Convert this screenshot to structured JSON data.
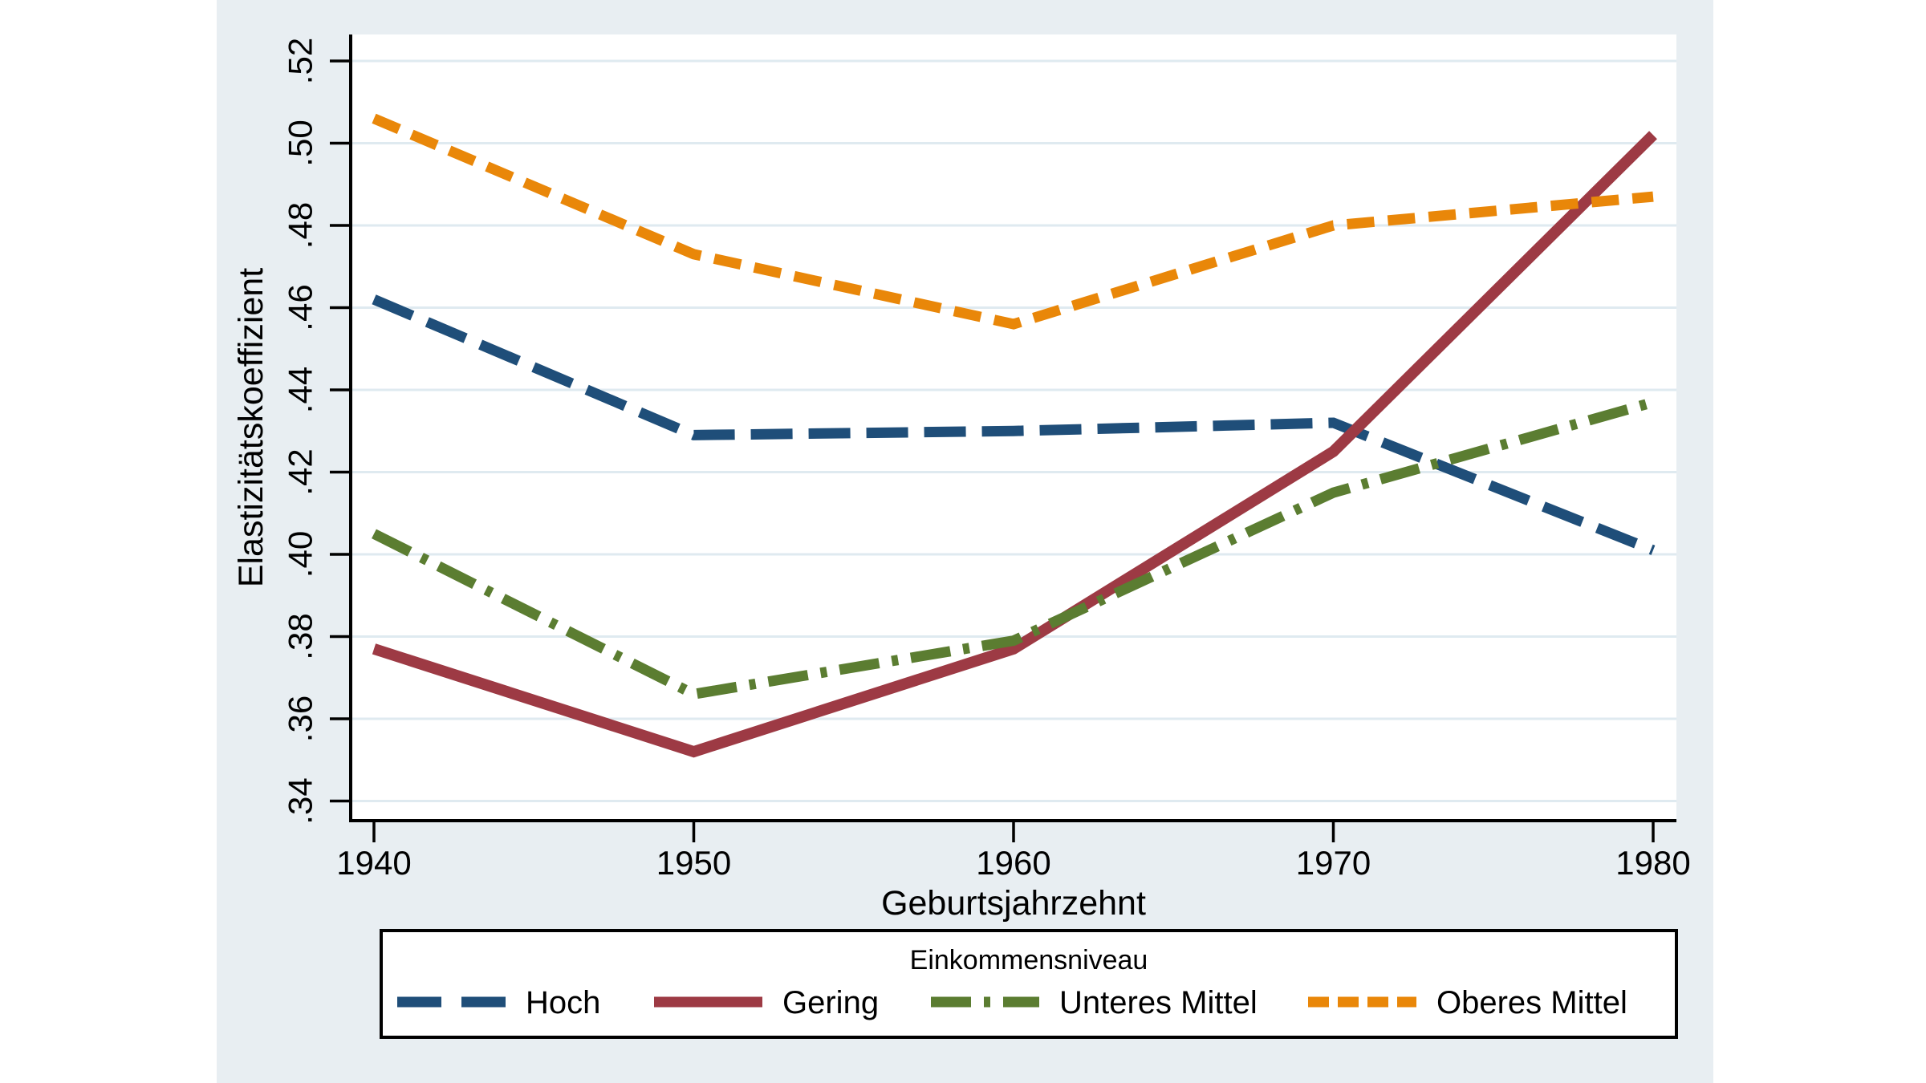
{
  "figure": {
    "colors": {
      "figure_background": "#e8eef2",
      "plot_background": "#ffffff",
      "gridline": "#dfeaf0",
      "axis": "#000000",
      "legend_border": "#000000",
      "legend_background": "#ffffff",
      "legend_title_color": "#233a66"
    }
  },
  "chart_data": {
    "type": "line",
    "title": "",
    "xlabel": "Geburtsjahrzehnt",
    "ylabel": "Elastizitätskoeffizient",
    "x": [
      1940,
      1950,
      1960,
      1970,
      1980
    ],
    "x_tick_labels": [
      "1940",
      "1950",
      "1960",
      "1970",
      "1980"
    ],
    "y_tick_values": [
      0.34,
      0.36,
      0.38,
      0.4,
      0.42,
      0.44,
      0.46,
      0.48,
      0.5,
      0.52
    ],
    "y_tick_labels": [
      ".34",
      ".36",
      ".38",
      ".40",
      ".42",
      ".44",
      ".46",
      ".48",
      ".50",
      ".52"
    ],
    "ylim": [
      0.34,
      0.52
    ],
    "grid": true,
    "legend": {
      "title": "Einkommensniveau",
      "position": "bottom"
    },
    "series": [
      {
        "name": "Hoch",
        "color": "#1f4e79",
        "dash": "long-dash",
        "values": [
          0.462,
          0.429,
          0.43,
          0.432,
          0.401
        ]
      },
      {
        "name": "Gering",
        "color": "#9d3a44",
        "dash": "solid",
        "values": [
          0.377,
          0.352,
          0.377,
          0.425,
          0.502
        ]
      },
      {
        "name": "Unteres Mittel",
        "color": "#5b7d31",
        "dash": "dash-dot",
        "values": [
          0.405,
          0.366,
          0.379,
          0.415,
          0.437
        ]
      },
      {
        "name": "Oberes Mittel",
        "color": "#e98709",
        "dash": "short-dash",
        "values": [
          0.506,
          0.473,
          0.456,
          0.48,
          0.487
        ]
      }
    ]
  }
}
